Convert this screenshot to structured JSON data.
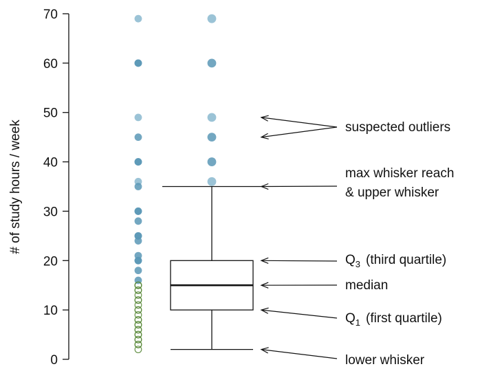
{
  "chart_data": {
    "type": "boxplot",
    "ylabel": "# of study hours / week",
    "ylim": [
      0,
      70
    ],
    "yticks": [
      0,
      10,
      20,
      30,
      40,
      50,
      60,
      70
    ],
    "grid": false,
    "box": {
      "lower_whisker": 2,
      "q1": 10,
      "median": 15,
      "q3": 20,
      "upper_whisker": 35,
      "outliers": [
        36,
        40,
        45,
        49,
        60,
        69
      ]
    },
    "strip_points": [
      69,
      60,
      60,
      49,
      45,
      40,
      40,
      36,
      35,
      30,
      30,
      28,
      25,
      25,
      24,
      21,
      20,
      20,
      18,
      16,
      15,
      15,
      15,
      14,
      14,
      13,
      12,
      12,
      11,
      10,
      10,
      9,
      8,
      8,
      7,
      7,
      6,
      6,
      5,
      5,
      4,
      4,
      3,
      3,
      2
    ],
    "annotations": {
      "outliers": "suspected outliers",
      "max_whisker_line1": "max whisker reach",
      "max_whisker_line2": "& upper whisker",
      "q3_main": "Q",
      "q3_sub": "3",
      "q3_desc": "(third quartile)",
      "median": "median",
      "q1_main": "Q",
      "q1_sub": "1",
      "q1_desc": "(first quartile)",
      "lower_whisker": "lower whisker"
    },
    "colors": {
      "outlier_strong": "#5b98b6",
      "outlier_light": "#8ab8cf",
      "inner_hollow": "#5a8a3a"
    }
  }
}
